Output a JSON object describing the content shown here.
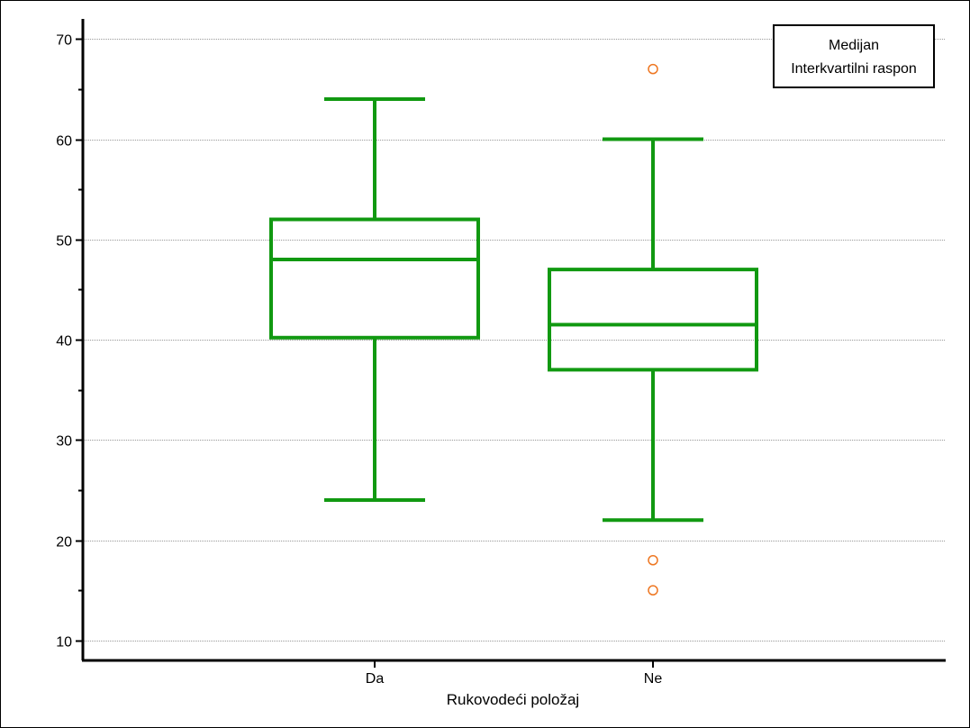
{
  "chart_data": {
    "type": "box",
    "title": "",
    "xlabel": "Rukovodeći položaj",
    "ylabel": "",
    "ylim": [
      8,
      72
    ],
    "yticks": [
      10,
      20,
      30,
      40,
      50,
      60,
      70
    ],
    "grid": true,
    "categories": [
      "Da",
      "Ne"
    ],
    "series": [
      {
        "category": "Da",
        "whisker_low": 24,
        "q1": 40.2,
        "median": 48,
        "q3": 52,
        "whisker_high": 64,
        "outliers": []
      },
      {
        "category": "Ne",
        "whisker_low": 22,
        "q1": 37,
        "median": 41.5,
        "q3": 47,
        "whisker_high": 60,
        "outliers": [
          67,
          18,
          15
        ]
      }
    ],
    "legend": {
      "position": "top-right",
      "entries": [
        "Medijan",
        "Interkvartilni raspon"
      ]
    },
    "colors": {
      "box": "#119911",
      "outlier": "#ee7722",
      "grid": "#999999",
      "axis": "#000000"
    }
  }
}
